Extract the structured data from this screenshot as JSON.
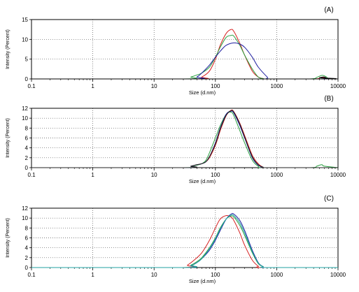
{
  "chart_data": [
    {
      "type": "line",
      "panel_label": "(A)",
      "xlabel": "Size (d.nm)",
      "ylabel": "Intensity (Percent)",
      "x_scale": "log",
      "xlim": [
        0.1,
        10000
      ],
      "ylim": [
        0,
        15
      ],
      "x_ticks": [
        "0.1",
        "1",
        "10",
        "100",
        "1000",
        "10000"
      ],
      "y_ticks": [
        "0",
        "5",
        "10",
        "15"
      ],
      "grid": "dotted",
      "legend": "none",
      "series": [
        {
          "color": "#d62020",
          "x": [
            45,
            60,
            80,
            100,
            120,
            150,
            180,
            200,
            250,
            300,
            400,
            500,
            600,
            700,
            4000,
            5000,
            5500,
            6000,
            7000
          ],
          "y": [
            0,
            0.5,
            2,
            5,
            8.5,
            11.5,
            12.5,
            12,
            9,
            6,
            2,
            0.5,
            0.1,
            0,
            0,
            0.3,
            0.4,
            0.3,
            0
          ]
        },
        {
          "color": "#2aa040",
          "x": [
            30,
            40,
            50,
            60,
            80,
            100,
            120,
            150,
            180,
            200,
            250,
            300,
            400,
            500,
            600,
            700,
            3500,
            4500,
            5500,
            6500,
            7000
          ],
          "y": [
            0,
            0.5,
            1,
            1.5,
            3,
            5.5,
            8,
            10.5,
            11,
            10.8,
            8.5,
            6,
            2.5,
            0.5,
            0.1,
            0,
            0,
            0.4,
            0.9,
            0.5,
            0
          ]
        },
        {
          "color": "#1e1ea0",
          "x": [
            40,
            50,
            60,
            80,
            100,
            120,
            150,
            200,
            250,
            300,
            400,
            500,
            700,
            800,
            5000,
            6000,
            7000
          ],
          "y": [
            0,
            0.5,
            1.5,
            3.5,
            5.5,
            7,
            8.5,
            9.1,
            8.8,
            8,
            5.5,
            3,
            0.5,
            0,
            0,
            0.2,
            0
          ]
        },
        {
          "color": "#000000",
          "x": [
            4000,
            5000,
            6000,
            7000
          ],
          "y": [
            0,
            0.3,
            0.5,
            0
          ]
        }
      ]
    },
    {
      "type": "line",
      "panel_label": "(B)",
      "xlabel": "Size (d.nm)",
      "ylabel": "Intensity (Percent)",
      "x_scale": "log",
      "xlim": [
        0.1,
        10000
      ],
      "ylim": [
        0,
        12
      ],
      "x_ticks": [
        "0.1",
        "1",
        "10",
        "100",
        "1000",
        "10000"
      ],
      "y_ticks": [
        "0",
        "2",
        "4",
        "6",
        "8",
        "10",
        "12"
      ],
      "grid": "dotted",
      "legend": "none",
      "series": [
        {
          "color": "#d62020",
          "x": [
            30,
            40,
            50,
            60,
            70,
            80,
            100,
            120,
            150,
            180,
            200,
            250,
            300,
            400,
            500,
            600,
            700
          ],
          "y": [
            0,
            0.3,
            0.6,
            0.8,
            1.2,
            2,
            4.5,
            7.5,
            10.5,
            11.6,
            11.3,
            9,
            6.5,
            2.5,
            0.8,
            0.1,
            0
          ]
        },
        {
          "color": "#2aa040",
          "x": [
            30,
            40,
            50,
            60,
            70,
            80,
            100,
            120,
            150,
            180,
            200,
            250,
            300,
            400,
            500,
            600,
            3500,
            4500,
            5000,
            5500,
            6000
          ],
          "y": [
            0,
            0.3,
            0.5,
            0.8,
            1.5,
            3,
            6,
            8.5,
            10.8,
            11.2,
            10.5,
            7.5,
            5,
            1.5,
            0.3,
            0,
            0,
            0.3,
            0.5,
            0.6,
            0.3
          ]
        },
        {
          "color": "#1e1ea0",
          "x": [
            30,
            40,
            50,
            60,
            70,
            80,
            100,
            120,
            150,
            180,
            200,
            250,
            300,
            400,
            500,
            600,
            700
          ],
          "y": [
            0,
            0.3,
            0.6,
            0.8,
            1.2,
            2.2,
            5,
            8,
            10.8,
            11.4,
            11,
            8.5,
            6,
            2,
            0.5,
            0.1,
            0
          ]
        },
        {
          "color": "#202020",
          "x": [
            30,
            40,
            50,
            60,
            70,
            80,
            100,
            120,
            150,
            180,
            200,
            250,
            300,
            400,
            500,
            600,
            700
          ],
          "y": [
            0,
            0.3,
            0.6,
            0.8,
            1.2,
            2.2,
            4.8,
            7.8,
            10.6,
            11.5,
            11.2,
            8.8,
            6.2,
            2.2,
            0.6,
            0.1,
            0
          ]
        }
      ]
    },
    {
      "type": "line",
      "panel_label": "(C)",
      "xlabel": "Size (d.nm)",
      "ylabel": "Intensity (Percent)",
      "x_scale": "log",
      "xlim": [
        0.1,
        10000
      ],
      "ylim": [
        0,
        12
      ],
      "x_ticks": [
        "0.1",
        "1",
        "10",
        "100",
        "1000",
        "10000"
      ],
      "y_ticks": [
        "0",
        "2",
        "4",
        "6",
        "8",
        "10",
        "12"
      ],
      "grid": "dotted",
      "legend": "none",
      "series": [
        {
          "color": "#d62020",
          "x": [
            28,
            35,
            45,
            60,
            80,
            100,
            120,
            150,
            180,
            200,
            250,
            300,
            400,
            500,
            600
          ],
          "y": [
            0,
            0.5,
            1.5,
            3,
            5.5,
            8,
            9.8,
            10.5,
            10.2,
            9.5,
            7,
            4.5,
            1.5,
            0.3,
            0
          ]
        },
        {
          "color": "#2aa040",
          "x": [
            30,
            40,
            50,
            60,
            80,
            100,
            120,
            150,
            180,
            200,
            250,
            300,
            400,
            500,
            600,
            700
          ],
          "y": [
            0,
            0.5,
            1.2,
            2,
            4,
            6,
            8,
            9.8,
            10.4,
            10.2,
            8.5,
            6.5,
            3,
            0.8,
            0.2,
            0
          ]
        },
        {
          "color": "#1e1ea0",
          "x": [
            30,
            40,
            50,
            60,
            80,
            100,
            120,
            150,
            180,
            200,
            250,
            300,
            400,
            500,
            600,
            700
          ],
          "y": [
            0,
            0.4,
            1,
            1.8,
            3.5,
            5.5,
            7.5,
            9.8,
            10.8,
            10.8,
            9.5,
            7.5,
            3.5,
            1,
            0.2,
            0
          ]
        },
        {
          "color": "#20a0a0",
          "x": [
            30,
            40,
            50,
            60,
            80,
            100,
            120,
            150,
            180,
            200,
            250,
            300,
            400,
            500,
            600,
            700
          ],
          "y": [
            0,
            0.4,
            1,
            1.8,
            3.8,
            5.8,
            7.8,
            9.8,
            10.6,
            10.5,
            9,
            7,
            3.2,
            0.9,
            0.2,
            0
          ]
        }
      ]
    }
  ]
}
